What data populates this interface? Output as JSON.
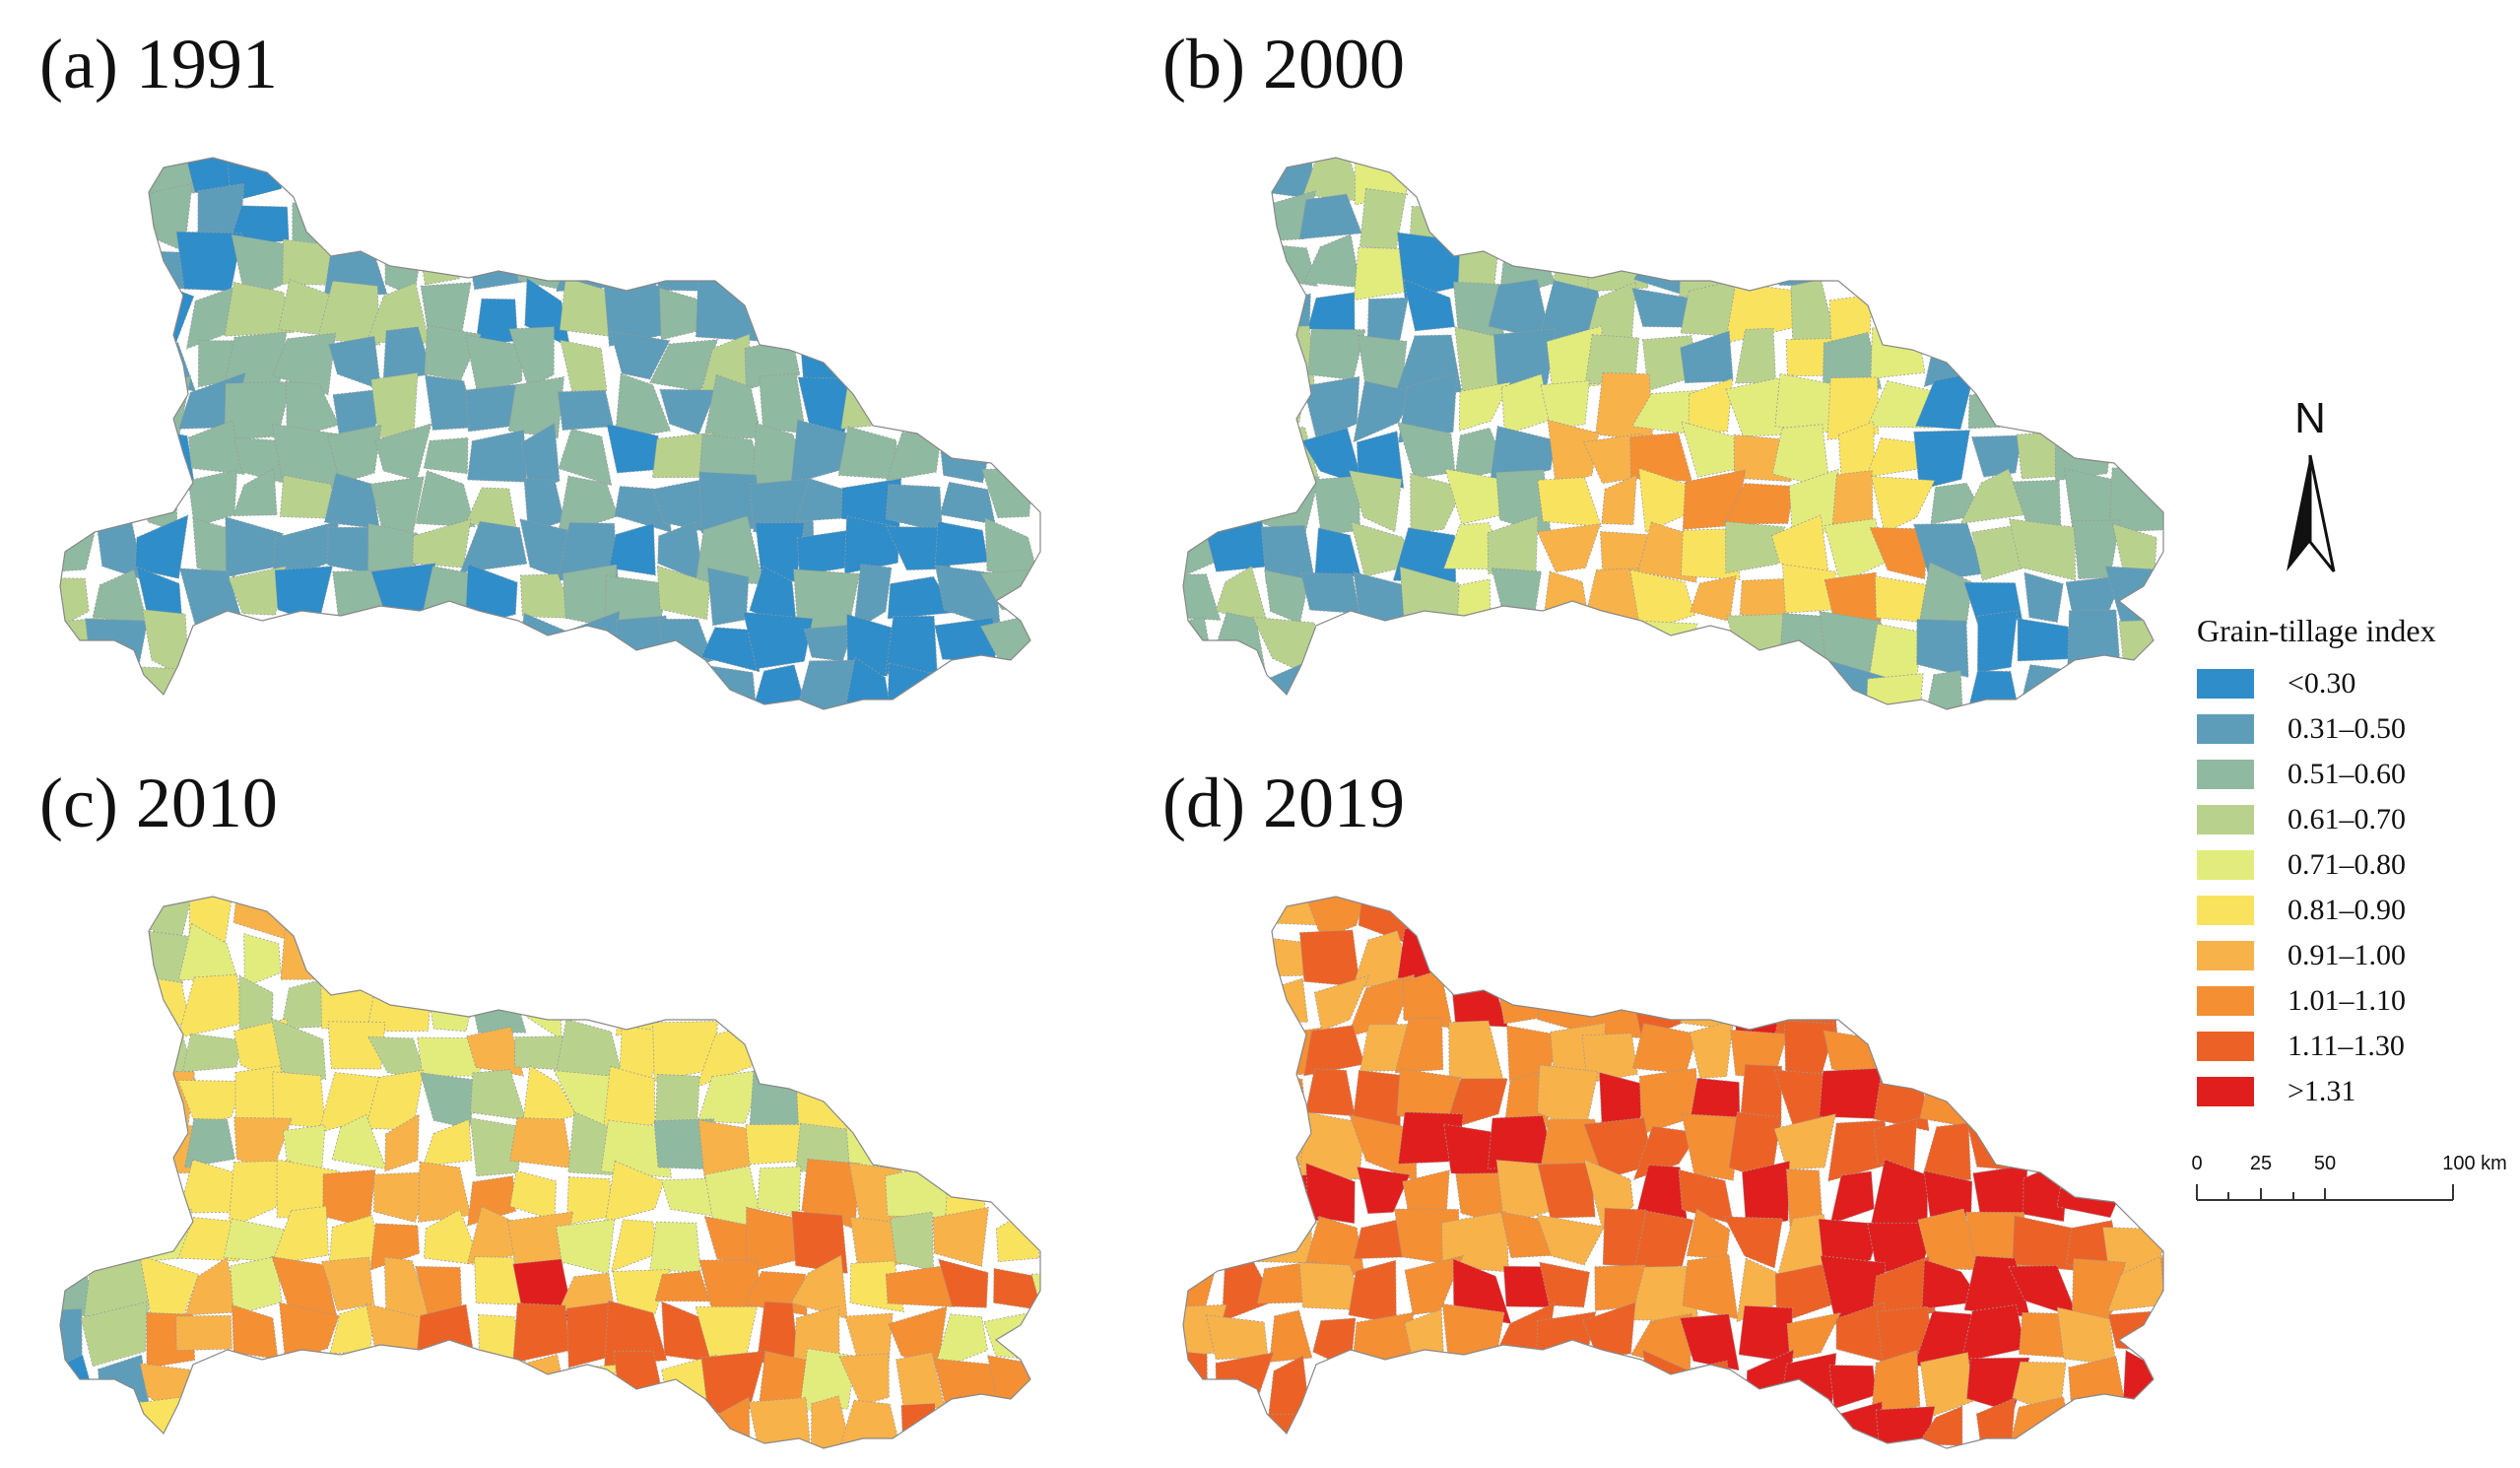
{
  "panels": [
    {
      "id": "a",
      "title": "(a) 1991"
    },
    {
      "id": "b",
      "title": "(b) 2000"
    },
    {
      "id": "c",
      "title": "(c) 2010"
    },
    {
      "id": "d",
      "title": "(d) 2019"
    }
  ],
  "north_arrow": {
    "letter": "N"
  },
  "legend": {
    "title": "Grain-tillage index",
    "classes": [
      {
        "label": "<0.30",
        "color": "#2f8dc9"
      },
      {
        "label": "0.31–0.50",
        "color": "#5d9db9"
      },
      {
        "label": "0.51–0.60",
        "color": "#8fb9a0"
      },
      {
        "label": "0.61–0.70",
        "color": "#b8d28e"
      },
      {
        "label": "0.71–0.80",
        "color": "#e2ec7d"
      },
      {
        "label": "0.81–0.90",
        "color": "#f9e35e"
      },
      {
        "label": "0.91–1.00",
        "color": "#f8b24a"
      },
      {
        "label": "1.01–1.10",
        "color": "#f48f34"
      },
      {
        "label": "1.11–1.30",
        "color": "#ec6226"
      },
      {
        "label": ">1.31",
        "color": "#e01e1e"
      }
    ]
  },
  "scale_bar": {
    "ticks": [
      "0",
      "25",
      "50",
      "100 km"
    ]
  }
}
